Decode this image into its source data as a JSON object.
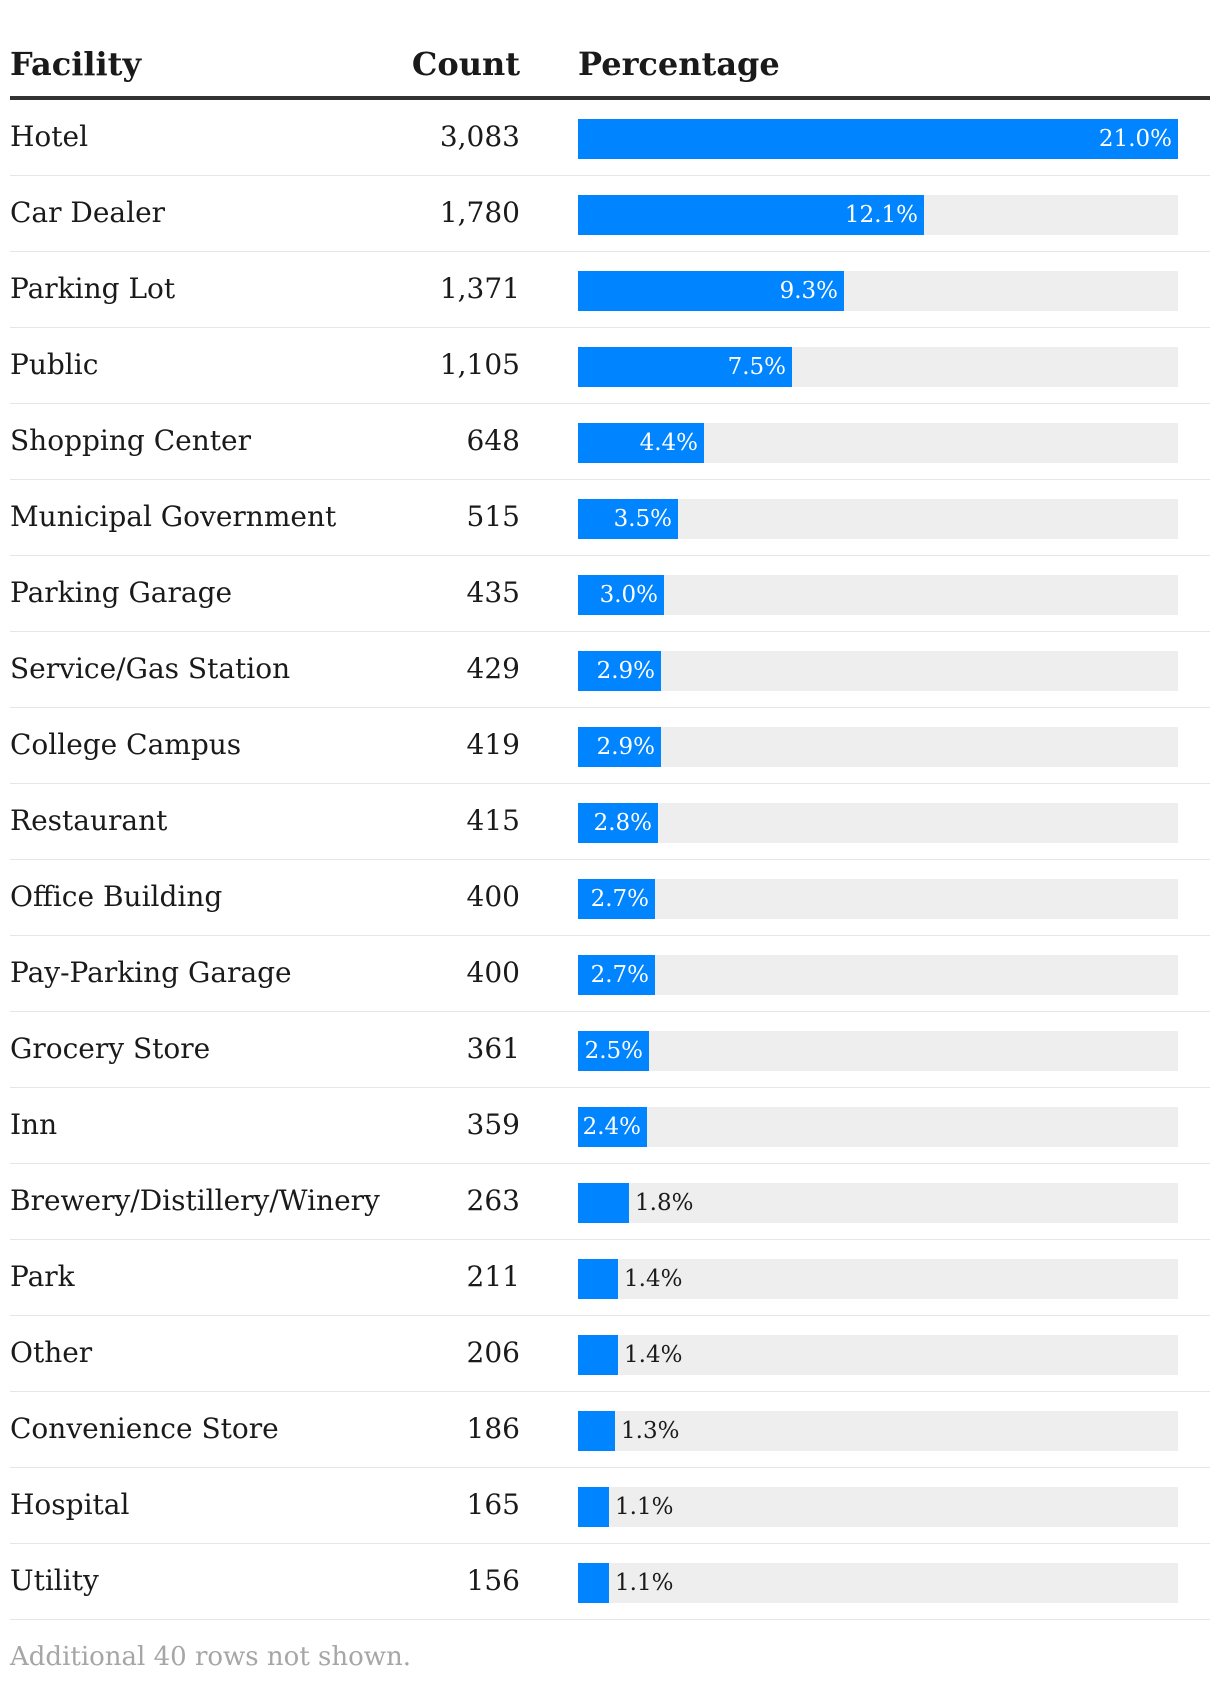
{
  "colors": {
    "bar": "#0084ff",
    "track": "#eeeeee",
    "label_inside": "#ffffff",
    "label_outside": "#1a1a1a"
  },
  "header": {
    "facility": "Facility",
    "count": "Count",
    "percentage": "Percentage"
  },
  "footer": {
    "note": "Additional 40 rows not shown."
  },
  "chart_data": {
    "type": "table",
    "columns": [
      "Facility",
      "Count",
      "Percentage"
    ],
    "bar_max_percent": 21.0,
    "rows": [
      {
        "facility": "Hotel",
        "count": "3,083",
        "percent": 21.0,
        "label": "21.0%"
      },
      {
        "facility": "Car Dealer",
        "count": "1,780",
        "percent": 12.1,
        "label": "12.1%"
      },
      {
        "facility": "Parking Lot",
        "count": "1,371",
        "percent": 9.3,
        "label": "9.3%"
      },
      {
        "facility": "Public",
        "count": "1,105",
        "percent": 7.5,
        "label": "7.5%"
      },
      {
        "facility": "Shopping Center",
        "count": "648",
        "percent": 4.4,
        "label": "4.4%"
      },
      {
        "facility": "Municipal Government",
        "count": "515",
        "percent": 3.5,
        "label": "3.5%"
      },
      {
        "facility": "Parking Garage",
        "count": "435",
        "percent": 3.0,
        "label": "3.0%"
      },
      {
        "facility": "Service/Gas Station",
        "count": "429",
        "percent": 2.9,
        "label": "2.9%"
      },
      {
        "facility": "College Campus",
        "count": "419",
        "percent": 2.9,
        "label": "2.9%"
      },
      {
        "facility": "Restaurant",
        "count": "415",
        "percent": 2.8,
        "label": "2.8%"
      },
      {
        "facility": "Office Building",
        "count": "400",
        "percent": 2.7,
        "label": "2.7%"
      },
      {
        "facility": "Pay-Parking Garage",
        "count": "400",
        "percent": 2.7,
        "label": "2.7%"
      },
      {
        "facility": "Grocery Store",
        "count": "361",
        "percent": 2.5,
        "label": "2.5%"
      },
      {
        "facility": "Inn",
        "count": "359",
        "percent": 2.4,
        "label": "2.4%"
      },
      {
        "facility": "Brewery/Distillery/Winery",
        "count": "263",
        "percent": 1.8,
        "label": "1.8%"
      },
      {
        "facility": "Park",
        "count": "211",
        "percent": 1.4,
        "label": "1.4%"
      },
      {
        "facility": "Other",
        "count": "206",
        "percent": 1.4,
        "label": "1.4%"
      },
      {
        "facility": "Convenience Store",
        "count": "186",
        "percent": 1.3,
        "label": "1.3%"
      },
      {
        "facility": "Hospital",
        "count": "165",
        "percent": 1.1,
        "label": "1.1%"
      },
      {
        "facility": "Utility",
        "count": "156",
        "percent": 1.1,
        "label": "1.1%"
      }
    ]
  }
}
